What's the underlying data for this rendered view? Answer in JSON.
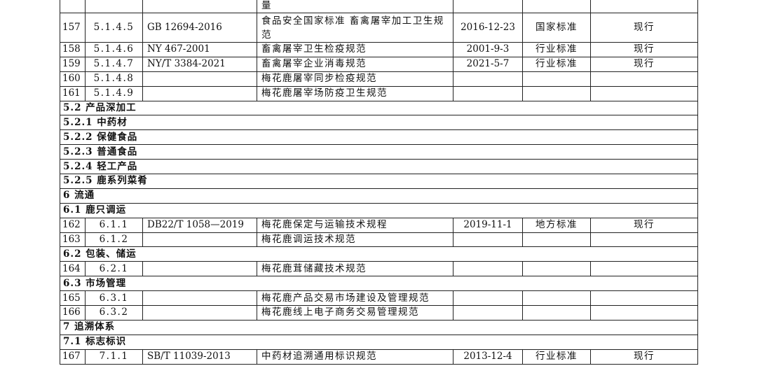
{
  "rows": [
    {
      "type": "item",
      "no": "",
      "code": "",
      "std": "",
      "name": "量",
      "date": "",
      "level": "",
      "status": ""
    },
    {
      "type": "item",
      "no": "157",
      "code": "5.1.4.5",
      "std": "GB 12694-2016",
      "name": "食品安全国家标准 畜禽屠宰加工卫生规范",
      "date": "2016-12-23",
      "level": "国家标准",
      "status": "现行"
    },
    {
      "type": "item",
      "no": "158",
      "code": "5.1.4.6",
      "std": "NY 467-2001",
      "name": "畜禽屠宰卫生检疫规范",
      "date": "2001-9-3",
      "level": "行业标准",
      "status": "现行"
    },
    {
      "type": "item",
      "no": "159",
      "code": "5.1.4.7",
      "std": "NY/T 3384-2021",
      "name": "畜禽屠宰企业消毒规范",
      "date": "2021-5-7",
      "level": "行业标准",
      "status": "现行"
    },
    {
      "type": "item",
      "no": "160",
      "code": "5.1.4.8",
      "std": "",
      "name": "梅花鹿屠宰同步检疫规范",
      "date": "",
      "level": "",
      "status": ""
    },
    {
      "type": "item",
      "no": "161",
      "code": "5.1.4.9",
      "std": "",
      "name": "梅花鹿屠宰场防疫卫生规范",
      "date": "",
      "level": "",
      "status": ""
    },
    {
      "type": "section",
      "title": "5.2 产品深加工"
    },
    {
      "type": "section",
      "title": "5.2.1 中药材"
    },
    {
      "type": "section",
      "title": "5.2.2 保健食品"
    },
    {
      "type": "section",
      "title": "5.2.3 普通食品"
    },
    {
      "type": "section",
      "title": "5.2.4 轻工产品"
    },
    {
      "type": "section",
      "title": "5.2.5 鹿系列菜肴"
    },
    {
      "type": "section",
      "title": "6 流通"
    },
    {
      "type": "section",
      "title": "6.1 鹿只调运"
    },
    {
      "type": "item",
      "no": "162",
      "code": "6.1.1",
      "std": "DB22/T 1058—2019",
      "name": "梅花鹿保定与运输技术规程",
      "date": "2019-11-1",
      "level": "地方标准",
      "status": "现行"
    },
    {
      "type": "item",
      "no": "163",
      "code": "6.1.2",
      "std": "",
      "name": "梅花鹿调运技术规范",
      "date": "",
      "level": "",
      "status": ""
    },
    {
      "type": "section",
      "title": "6.2 包装、储运"
    },
    {
      "type": "item",
      "no": "164",
      "code": "6.2.1",
      "std": "",
      "name": "梅花鹿茸储藏技术规范",
      "date": "",
      "level": "",
      "status": ""
    },
    {
      "type": "section",
      "title": "6.3 市场管理"
    },
    {
      "type": "item",
      "no": "165",
      "code": "6.3.1",
      "std": "",
      "name": "梅花鹿产品交易市场建设及管理规范",
      "date": "",
      "level": "",
      "status": ""
    },
    {
      "type": "item",
      "no": "166",
      "code": "6.3.2",
      "std": "",
      "name": "梅花鹿线上电子商务交易管理规范",
      "date": "",
      "level": "",
      "status": ""
    },
    {
      "type": "section",
      "title": "7 追溯体系"
    },
    {
      "type": "section",
      "title": "7.1 标志标识"
    },
    {
      "type": "item",
      "no": "167",
      "code": "7.1.1",
      "std": "SB/T 11039-2013",
      "name": "中药材追溯通用标识规范",
      "date": "2013-12-4",
      "level": "行业标准",
      "status": "现行"
    }
  ]
}
